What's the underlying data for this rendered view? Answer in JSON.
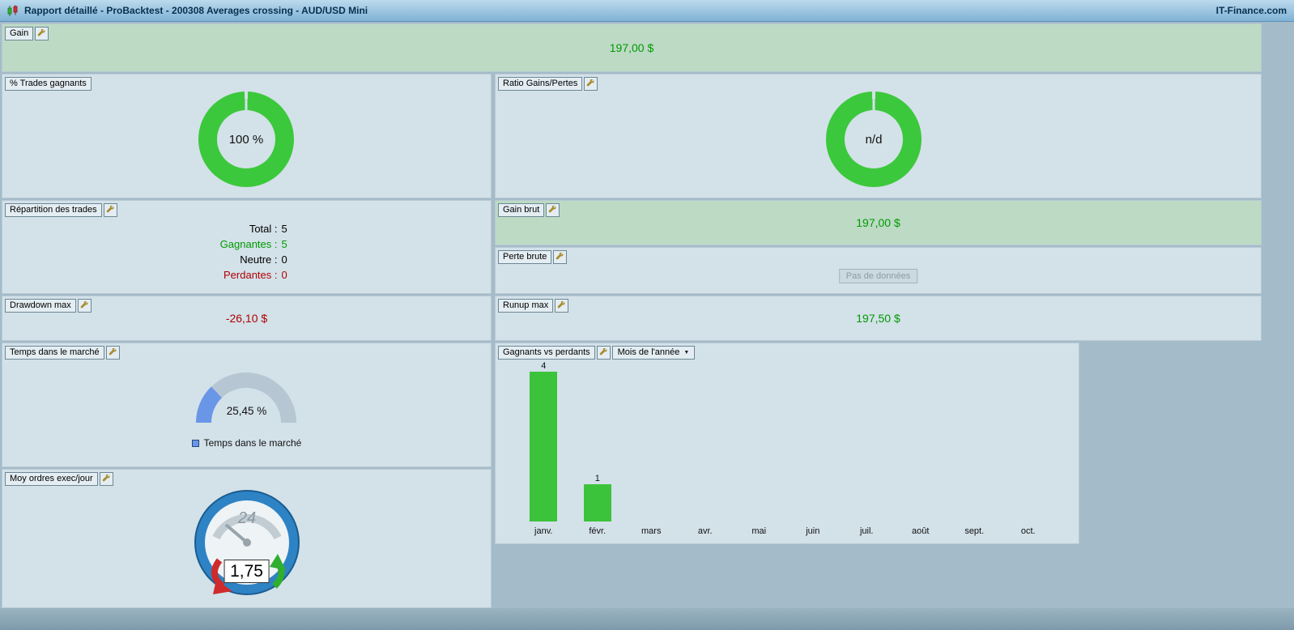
{
  "title_bar": {
    "title": "Rapport détaillé - ProBacktest - 200308 Averages crossing - AUD/USD Mini",
    "brand": "IT-Finance.com"
  },
  "panels": {
    "gain": {
      "label": "Gain",
      "value": "197,00 $"
    },
    "pct_trades_gagnants": {
      "label": "% Trades gagnants",
      "value": "100 %"
    },
    "ratio_gains_pertes": {
      "label": "Ratio Gains/Pertes",
      "value": "n/d"
    },
    "repartition": {
      "label": "Répartition des trades",
      "rows": [
        {
          "name": "Total :",
          "value": "5",
          "color": "#000000"
        },
        {
          "name": "Gagnantes :",
          "value": "5",
          "color": "#009b00"
        },
        {
          "name": "Neutre :",
          "value": "0",
          "color": "#000000"
        },
        {
          "name": "Perdantes :",
          "value": "0",
          "color": "#b00000"
        }
      ]
    },
    "gain_brut": {
      "label": "Gain brut",
      "value": "197,00 $"
    },
    "perte_brute": {
      "label": "Perte brute",
      "no_data": "Pas de données"
    },
    "drawdown_max": {
      "label": "Drawdown max",
      "value": "-26,10 $"
    },
    "runup_max": {
      "label": "Runup max",
      "value": "197,50 $"
    },
    "temps_marche": {
      "label": "Temps dans le marché",
      "value": "25,45 %",
      "percent": 25.45,
      "legend": "Temps dans le marché"
    },
    "gagnants_vs_perdants": {
      "label": "Gagnants vs perdants",
      "dropdown": "Mois de l'année"
    },
    "moy_ordres": {
      "label": "Moy ordres exec/jour",
      "value": "1,75",
      "clock_label": "24"
    }
  },
  "chart_data": {
    "type": "bar",
    "title": "Gagnants vs perdants",
    "categories": [
      "janv.",
      "févr.",
      "mars",
      "avr.",
      "mai",
      "juin",
      "juil.",
      "août",
      "sept.",
      "oct."
    ],
    "series": [
      {
        "name": "Gagnants",
        "values": [
          4,
          1,
          0,
          0,
          0,
          0,
          0,
          0,
          0,
          0
        ]
      }
    ],
    "ylim": [
      0,
      4
    ],
    "xlabel": "",
    "ylabel": "",
    "grid": false,
    "legend_position": "none",
    "bar_color": "#3cc33c"
  },
  "colors": {
    "positive_text": "#009b00",
    "negative_text": "#b00000",
    "donut_green": "#3cc83c",
    "bar_green": "#3cc33c",
    "gauge_fill": "#6a96e8",
    "gauge_track": "#b7c6d3",
    "panel_bg": "#d3e1e9",
    "panel_green_bg": "#bcdac4"
  }
}
